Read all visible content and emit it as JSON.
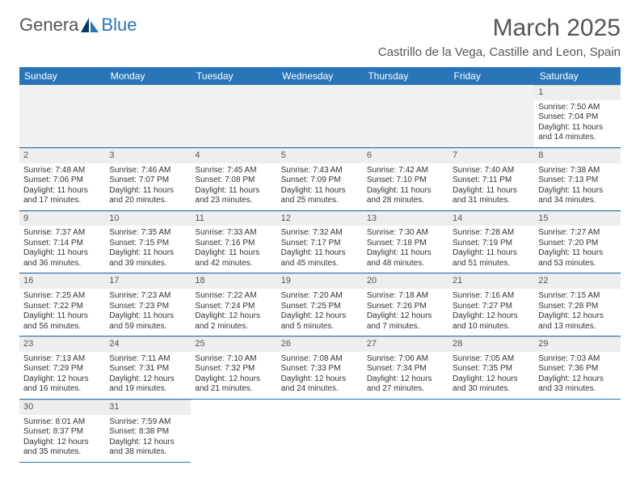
{
  "logo": {
    "text1": "Genera",
    "text2": "Blue"
  },
  "title": "March 2025",
  "location": "Castrillo de la Vega, Castille and Leon, Spain",
  "colors": {
    "accent": "#2876b8",
    "header_bg": "#2876b8",
    "daynum_bg": "#eeeeee",
    "text": "#333333"
  },
  "weekdays": [
    "Sunday",
    "Monday",
    "Tuesday",
    "Wednesday",
    "Thursday",
    "Friday",
    "Saturday"
  ],
  "weeks": [
    [
      null,
      null,
      null,
      null,
      null,
      null,
      {
        "d": "1",
        "sr": "7:50 AM",
        "ss": "7:04 PM",
        "dl": "11 hours and 14 minutes."
      }
    ],
    [
      {
        "d": "2",
        "sr": "7:48 AM",
        "ss": "7:06 PM",
        "dl": "11 hours and 17 minutes."
      },
      {
        "d": "3",
        "sr": "7:46 AM",
        "ss": "7:07 PM",
        "dl": "11 hours and 20 minutes."
      },
      {
        "d": "4",
        "sr": "7:45 AM",
        "ss": "7:08 PM",
        "dl": "11 hours and 23 minutes."
      },
      {
        "d": "5",
        "sr": "7:43 AM",
        "ss": "7:09 PM",
        "dl": "11 hours and 25 minutes."
      },
      {
        "d": "6",
        "sr": "7:42 AM",
        "ss": "7:10 PM",
        "dl": "11 hours and 28 minutes."
      },
      {
        "d": "7",
        "sr": "7:40 AM",
        "ss": "7:11 PM",
        "dl": "11 hours and 31 minutes."
      },
      {
        "d": "8",
        "sr": "7:38 AM",
        "ss": "7:13 PM",
        "dl": "11 hours and 34 minutes."
      }
    ],
    [
      {
        "d": "9",
        "sr": "7:37 AM",
        "ss": "7:14 PM",
        "dl": "11 hours and 36 minutes."
      },
      {
        "d": "10",
        "sr": "7:35 AM",
        "ss": "7:15 PM",
        "dl": "11 hours and 39 minutes."
      },
      {
        "d": "11",
        "sr": "7:33 AM",
        "ss": "7:16 PM",
        "dl": "11 hours and 42 minutes."
      },
      {
        "d": "12",
        "sr": "7:32 AM",
        "ss": "7:17 PM",
        "dl": "11 hours and 45 minutes."
      },
      {
        "d": "13",
        "sr": "7:30 AM",
        "ss": "7:18 PM",
        "dl": "11 hours and 48 minutes."
      },
      {
        "d": "14",
        "sr": "7:28 AM",
        "ss": "7:19 PM",
        "dl": "11 hours and 51 minutes."
      },
      {
        "d": "15",
        "sr": "7:27 AM",
        "ss": "7:20 PM",
        "dl": "11 hours and 53 minutes."
      }
    ],
    [
      {
        "d": "16",
        "sr": "7:25 AM",
        "ss": "7:22 PM",
        "dl": "11 hours and 56 minutes."
      },
      {
        "d": "17",
        "sr": "7:23 AM",
        "ss": "7:23 PM",
        "dl": "11 hours and 59 minutes."
      },
      {
        "d": "18",
        "sr": "7:22 AM",
        "ss": "7:24 PM",
        "dl": "12 hours and 2 minutes."
      },
      {
        "d": "19",
        "sr": "7:20 AM",
        "ss": "7:25 PM",
        "dl": "12 hours and 5 minutes."
      },
      {
        "d": "20",
        "sr": "7:18 AM",
        "ss": "7:26 PM",
        "dl": "12 hours and 7 minutes."
      },
      {
        "d": "21",
        "sr": "7:16 AM",
        "ss": "7:27 PM",
        "dl": "12 hours and 10 minutes."
      },
      {
        "d": "22",
        "sr": "7:15 AM",
        "ss": "7:28 PM",
        "dl": "12 hours and 13 minutes."
      }
    ],
    [
      {
        "d": "23",
        "sr": "7:13 AM",
        "ss": "7:29 PM",
        "dl": "12 hours and 16 minutes."
      },
      {
        "d": "24",
        "sr": "7:11 AM",
        "ss": "7:31 PM",
        "dl": "12 hours and 19 minutes."
      },
      {
        "d": "25",
        "sr": "7:10 AM",
        "ss": "7:32 PM",
        "dl": "12 hours and 21 minutes."
      },
      {
        "d": "26",
        "sr": "7:08 AM",
        "ss": "7:33 PM",
        "dl": "12 hours and 24 minutes."
      },
      {
        "d": "27",
        "sr": "7:06 AM",
        "ss": "7:34 PM",
        "dl": "12 hours and 27 minutes."
      },
      {
        "d": "28",
        "sr": "7:05 AM",
        "ss": "7:35 PM",
        "dl": "12 hours and 30 minutes."
      },
      {
        "d": "29",
        "sr": "7:03 AM",
        "ss": "7:36 PM",
        "dl": "12 hours and 33 minutes."
      }
    ],
    [
      {
        "d": "30",
        "sr": "8:01 AM",
        "ss": "8:37 PM",
        "dl": "12 hours and 35 minutes."
      },
      {
        "d": "31",
        "sr": "7:59 AM",
        "ss": "8:38 PM",
        "dl": "12 hours and 38 minutes."
      },
      null,
      null,
      null,
      null,
      null
    ]
  ],
  "labels": {
    "sunrise": "Sunrise: ",
    "sunset": "Sunset: ",
    "daylight": "Daylight: "
  }
}
